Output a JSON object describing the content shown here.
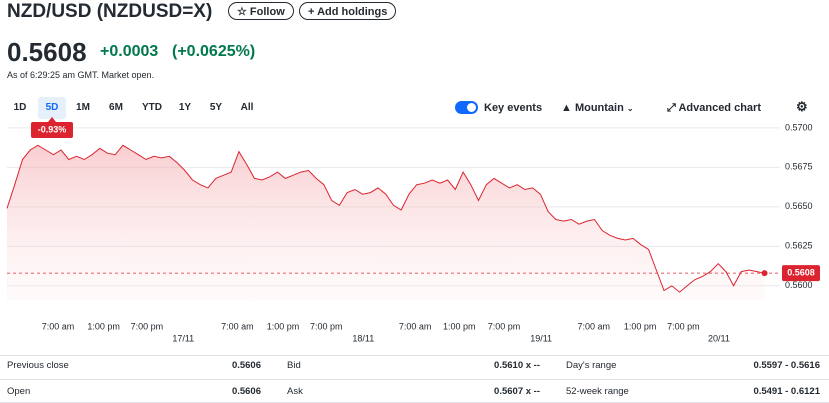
{
  "header": {
    "title": "NZD/USD (NZDUSD=X)",
    "follow": "Follow",
    "add_holdings": "Add holdings"
  },
  "quote": {
    "price": "0.5608",
    "change": "+0.0003",
    "change_pct": "(+0.0625%)",
    "timestamp": "As of 6:29:25 am GMT. Market open."
  },
  "ranges": [
    {
      "label": "1D"
    },
    {
      "label": "5D",
      "selected": true
    },
    {
      "label": "1M"
    },
    {
      "label": "6M"
    },
    {
      "label": "YTD"
    },
    {
      "label": "1Y"
    },
    {
      "label": "5Y"
    },
    {
      "label": "All"
    }
  ],
  "controls": {
    "key_events": "Key events",
    "chart_style": "Mountain",
    "advanced_chart": "Advanced chart"
  },
  "chart_data": {
    "type": "area",
    "color": "#dc2430",
    "period_change": "-0.93%",
    "last_label": "0.5608",
    "values": [
      0.5649,
      0.5664,
      0.568,
      0.5686,
      0.5689,
      0.5686,
      0.5683,
      0.5686,
      0.568,
      0.5682,
      0.568,
      0.5683,
      0.5687,
      0.5684,
      0.5683,
      0.5689,
      0.5686,
      0.5683,
      0.568,
      0.5682,
      0.5681,
      0.5682,
      0.5678,
      0.5673,
      0.5667,
      0.5664,
      0.5662,
      0.5668,
      0.567,
      0.5672,
      0.5685,
      0.5677,
      0.5668,
      0.5667,
      0.5669,
      0.5672,
      0.5668,
      0.567,
      0.5672,
      0.5673,
      0.5668,
      0.5664,
      0.5654,
      0.5651,
      0.5659,
      0.5661,
      0.5658,
      0.5659,
      0.5662,
      0.5658,
      0.5651,
      0.5648,
      0.5658,
      0.5664,
      0.5665,
      0.5667,
      0.5665,
      0.5667,
      0.5661,
      0.5672,
      0.5664,
      0.5654,
      0.5664,
      0.5668,
      0.5665,
      0.5662,
      0.5664,
      0.5661,
      0.5662,
      0.5658,
      0.5647,
      0.5642,
      0.5641,
      0.5642,
      0.5639,
      0.5641,
      0.5642,
      0.5635,
      0.5632,
      0.563,
      0.5629,
      0.563,
      0.5626,
      0.5623,
      0.561,
      0.5597,
      0.56,
      0.5596,
      0.56,
      0.5604,
      0.5606,
      0.5609,
      0.5614,
      0.5609,
      0.56,
      0.5609,
      0.561,
      0.5609,
      0.5608
    ],
    "xlim": [
      0,
      100
    ],
    "ylim": [
      0.5591,
      0.5705
    ],
    "yticks": [
      {
        "value": 0.57,
        "label": "0.5700"
      },
      0.5675,
      {
        "value": 0.565,
        "label": "0.5650"
      },
      0.5625,
      {
        "value": 0.56,
        "label": "0.5600"
      }
    ],
    "xticks": [
      {
        "value": 6.6,
        "label": "7:00 am"
      },
      {
        "value": 12.5,
        "label": "1:00 pm"
      },
      {
        "value": 18.1,
        "label": "7:00 pm"
      },
      {
        "value": 29.8,
        "label": "7:00 am"
      },
      {
        "value": 35.7,
        "label": "1:00 pm"
      },
      {
        "value": 41.3,
        "label": "7:00 pm"
      },
      {
        "value": 52.8,
        "label": "7:00 am"
      },
      {
        "value": 58.5,
        "label": "1:00 pm"
      },
      {
        "value": 64.3,
        "label": "7:00 pm"
      },
      {
        "value": 75.9,
        "label": "7:00 am"
      },
      {
        "value": 81.9,
        "label": "1:00 pm"
      },
      {
        "value": 87.5,
        "label": "7:00 pm"
      }
    ],
    "date_ticks": [
      {
        "value": 22.8,
        "label": "17/11"
      },
      {
        "value": 46.1,
        "label": "18/11"
      },
      {
        "value": 69.1,
        "label": "19/11"
      },
      {
        "value": 92.1,
        "label": "20/11"
      }
    ],
    "grid": true
  },
  "stats": {
    "rows": [
      [
        "Previous close",
        "0.5606",
        "Bid",
        "0.5610 x --",
        "Day's range",
        "0.5597 - 0.5616"
      ],
      [
        "Open",
        "0.5606",
        "Ask",
        "0.5607 x --",
        "52-week range",
        "0.5491 - 0.6121"
      ]
    ]
  }
}
